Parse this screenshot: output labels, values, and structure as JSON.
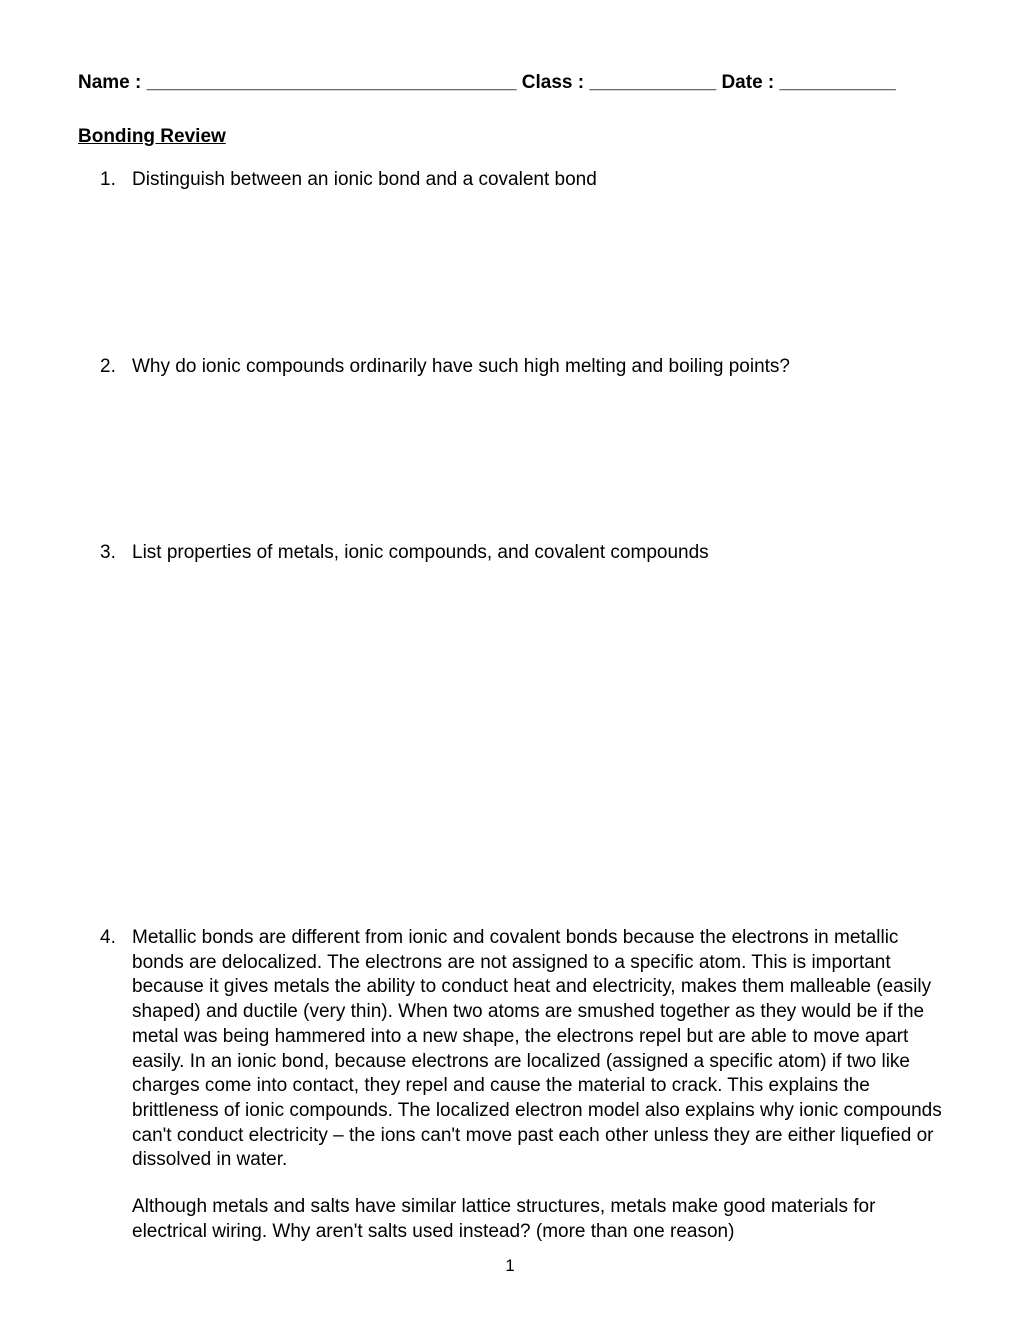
{
  "header": {
    "name_label": "Name :",
    "name_blank": " ___________________________________",
    "class_label": " Class :",
    "class_blank": " ____________",
    "date_label": " Date :",
    "date_blank": " ___________"
  },
  "section_title": "Bonding Review",
  "questions": {
    "q1": {
      "number": "1.",
      "text": "Distinguish between an ionic bond and a covalent bond"
    },
    "q2": {
      "number": "2.",
      "text": "Why do ionic compounds ordinarily have such high melting and boiling points?"
    },
    "q3": {
      "number": "3.",
      "text": "List properties of metals, ionic compounds, and covalent compounds"
    },
    "q4": {
      "number": "4.",
      "text": "Metallic bonds are different from ionic and covalent bonds because the electrons in metallic bonds are delocalized. The electrons are not assigned to a specific atom.  This is important because it gives metals the ability to conduct heat and electricity, makes them malleable (easily shaped) and ductile (very thin).   When two atoms are smushed together as they would be if the metal was being hammered into a new shape, the electrons repel but are able to move apart easily.  In an ionic bond, because electrons are localized (assigned a specific atom) if two like charges come into contact, they repel and cause the material to crack.  This explains the brittleness of ionic compounds.  The localized electron model also explains why ionic compounds can't conduct electricity – the ions can't move past each other unless they are either liquefied or dissolved in water.",
      "sub_text": "Although metals and salts have similar lattice structures, metals make good materials for electrical wiring.  Why aren't salts used instead? (more than one reason)"
    }
  },
  "page_number": "1"
}
